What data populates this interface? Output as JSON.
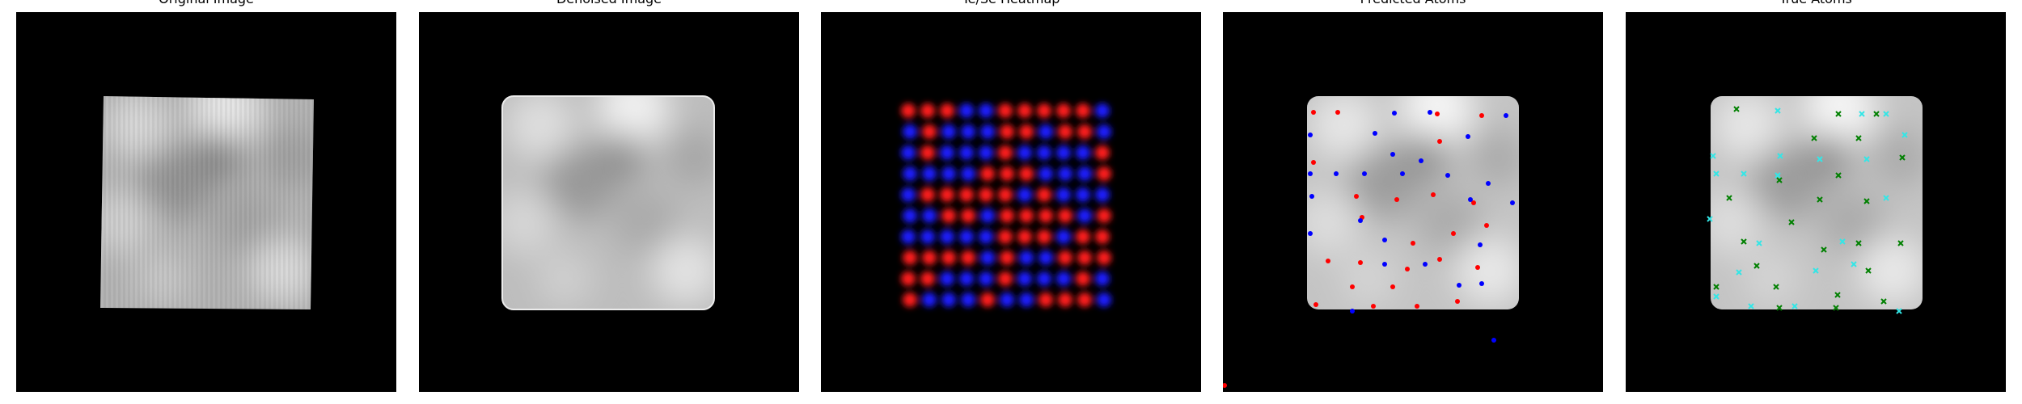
{
  "panels": [
    {
      "id": "original",
      "title": "Original Image"
    },
    {
      "id": "denoised",
      "title": "Denoised Image"
    },
    {
      "id": "heatmap",
      "title": "Te/Se Heatmap"
    },
    {
      "id": "predicted",
      "title": "Predicted Atoms"
    },
    {
      "id": "true",
      "title": "True Atoms"
    }
  ],
  "colors": {
    "background": "#000000",
    "te": "#ff1a1a",
    "se": "#1a1aff",
    "predicted_red": "#ff0000",
    "predicted_blue": "#0000ff",
    "true_cyan": "#33e6e6",
    "true_green": "#008000"
  }
}
